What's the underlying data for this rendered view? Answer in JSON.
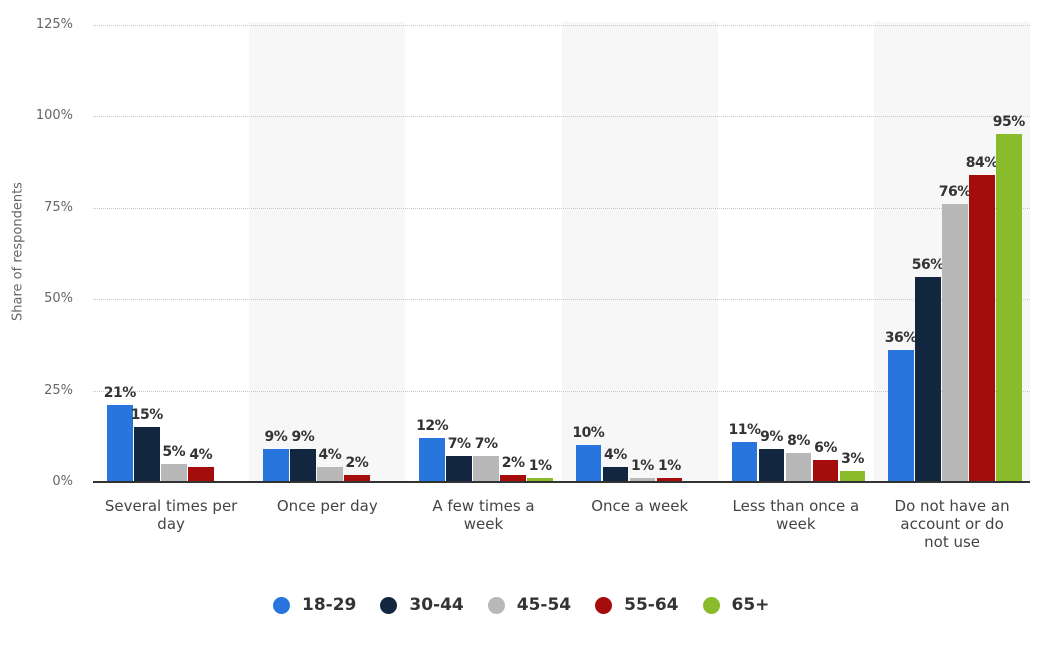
{
  "chart_data": {
    "type": "bar",
    "title": "",
    "xlabel": "",
    "ylabel": "Share of respondents",
    "ylim": [
      0,
      125
    ],
    "yticks": [
      "0%",
      "25%",
      "50%",
      "75%",
      "100%",
      "125%"
    ],
    "grid": true,
    "legend_position": "bottom",
    "categories": [
      "Several times per day",
      "Once per day",
      "A few times a week",
      "Once a week",
      "Less than once a week",
      "Do not have an account or do not use"
    ],
    "series": [
      {
        "name": "18-29",
        "color": "#2876dd",
        "values": [
          21,
          9,
          12,
          10,
          11,
          36
        ]
      },
      {
        "name": "30-44",
        "color": "#12263f",
        "values": [
          15,
          9,
          7,
          4,
          9,
          56
        ]
      },
      {
        "name": "45-54",
        "color": "#b8b8b8",
        "values": [
          5,
          4,
          7,
          1,
          8,
          76
        ]
      },
      {
        "name": "55-64",
        "color": "#a50c0c",
        "values": [
          4,
          2,
          2,
          1,
          6,
          84
        ]
      },
      {
        "name": "65+",
        "color": "#8abb2a",
        "values": [
          null,
          null,
          1,
          null,
          3,
          95
        ]
      }
    ]
  },
  "axis": {
    "y_title": "Share of respondents",
    "y_ticks": [
      "125%",
      "100%",
      "75%",
      "50%",
      "25%",
      "0%"
    ]
  },
  "x_labels": [
    [
      "Several times per",
      "day"
    ],
    [
      "Once per day"
    ],
    [
      "A few times a",
      "week"
    ],
    [
      "Once a week"
    ],
    [
      "Less than once a",
      "week"
    ],
    [
      "Do not have an",
      "account or do",
      "not use"
    ]
  ],
  "legend": [
    {
      "label": "18-29",
      "color": "#2876dd"
    },
    {
      "label": "30-44",
      "color": "#12263f"
    },
    {
      "label": "45-54",
      "color": "#b8b8b8"
    },
    {
      "label": "55-64",
      "color": "#a50c0c"
    },
    {
      "label": "65+",
      "color": "#8abb2a"
    }
  ]
}
